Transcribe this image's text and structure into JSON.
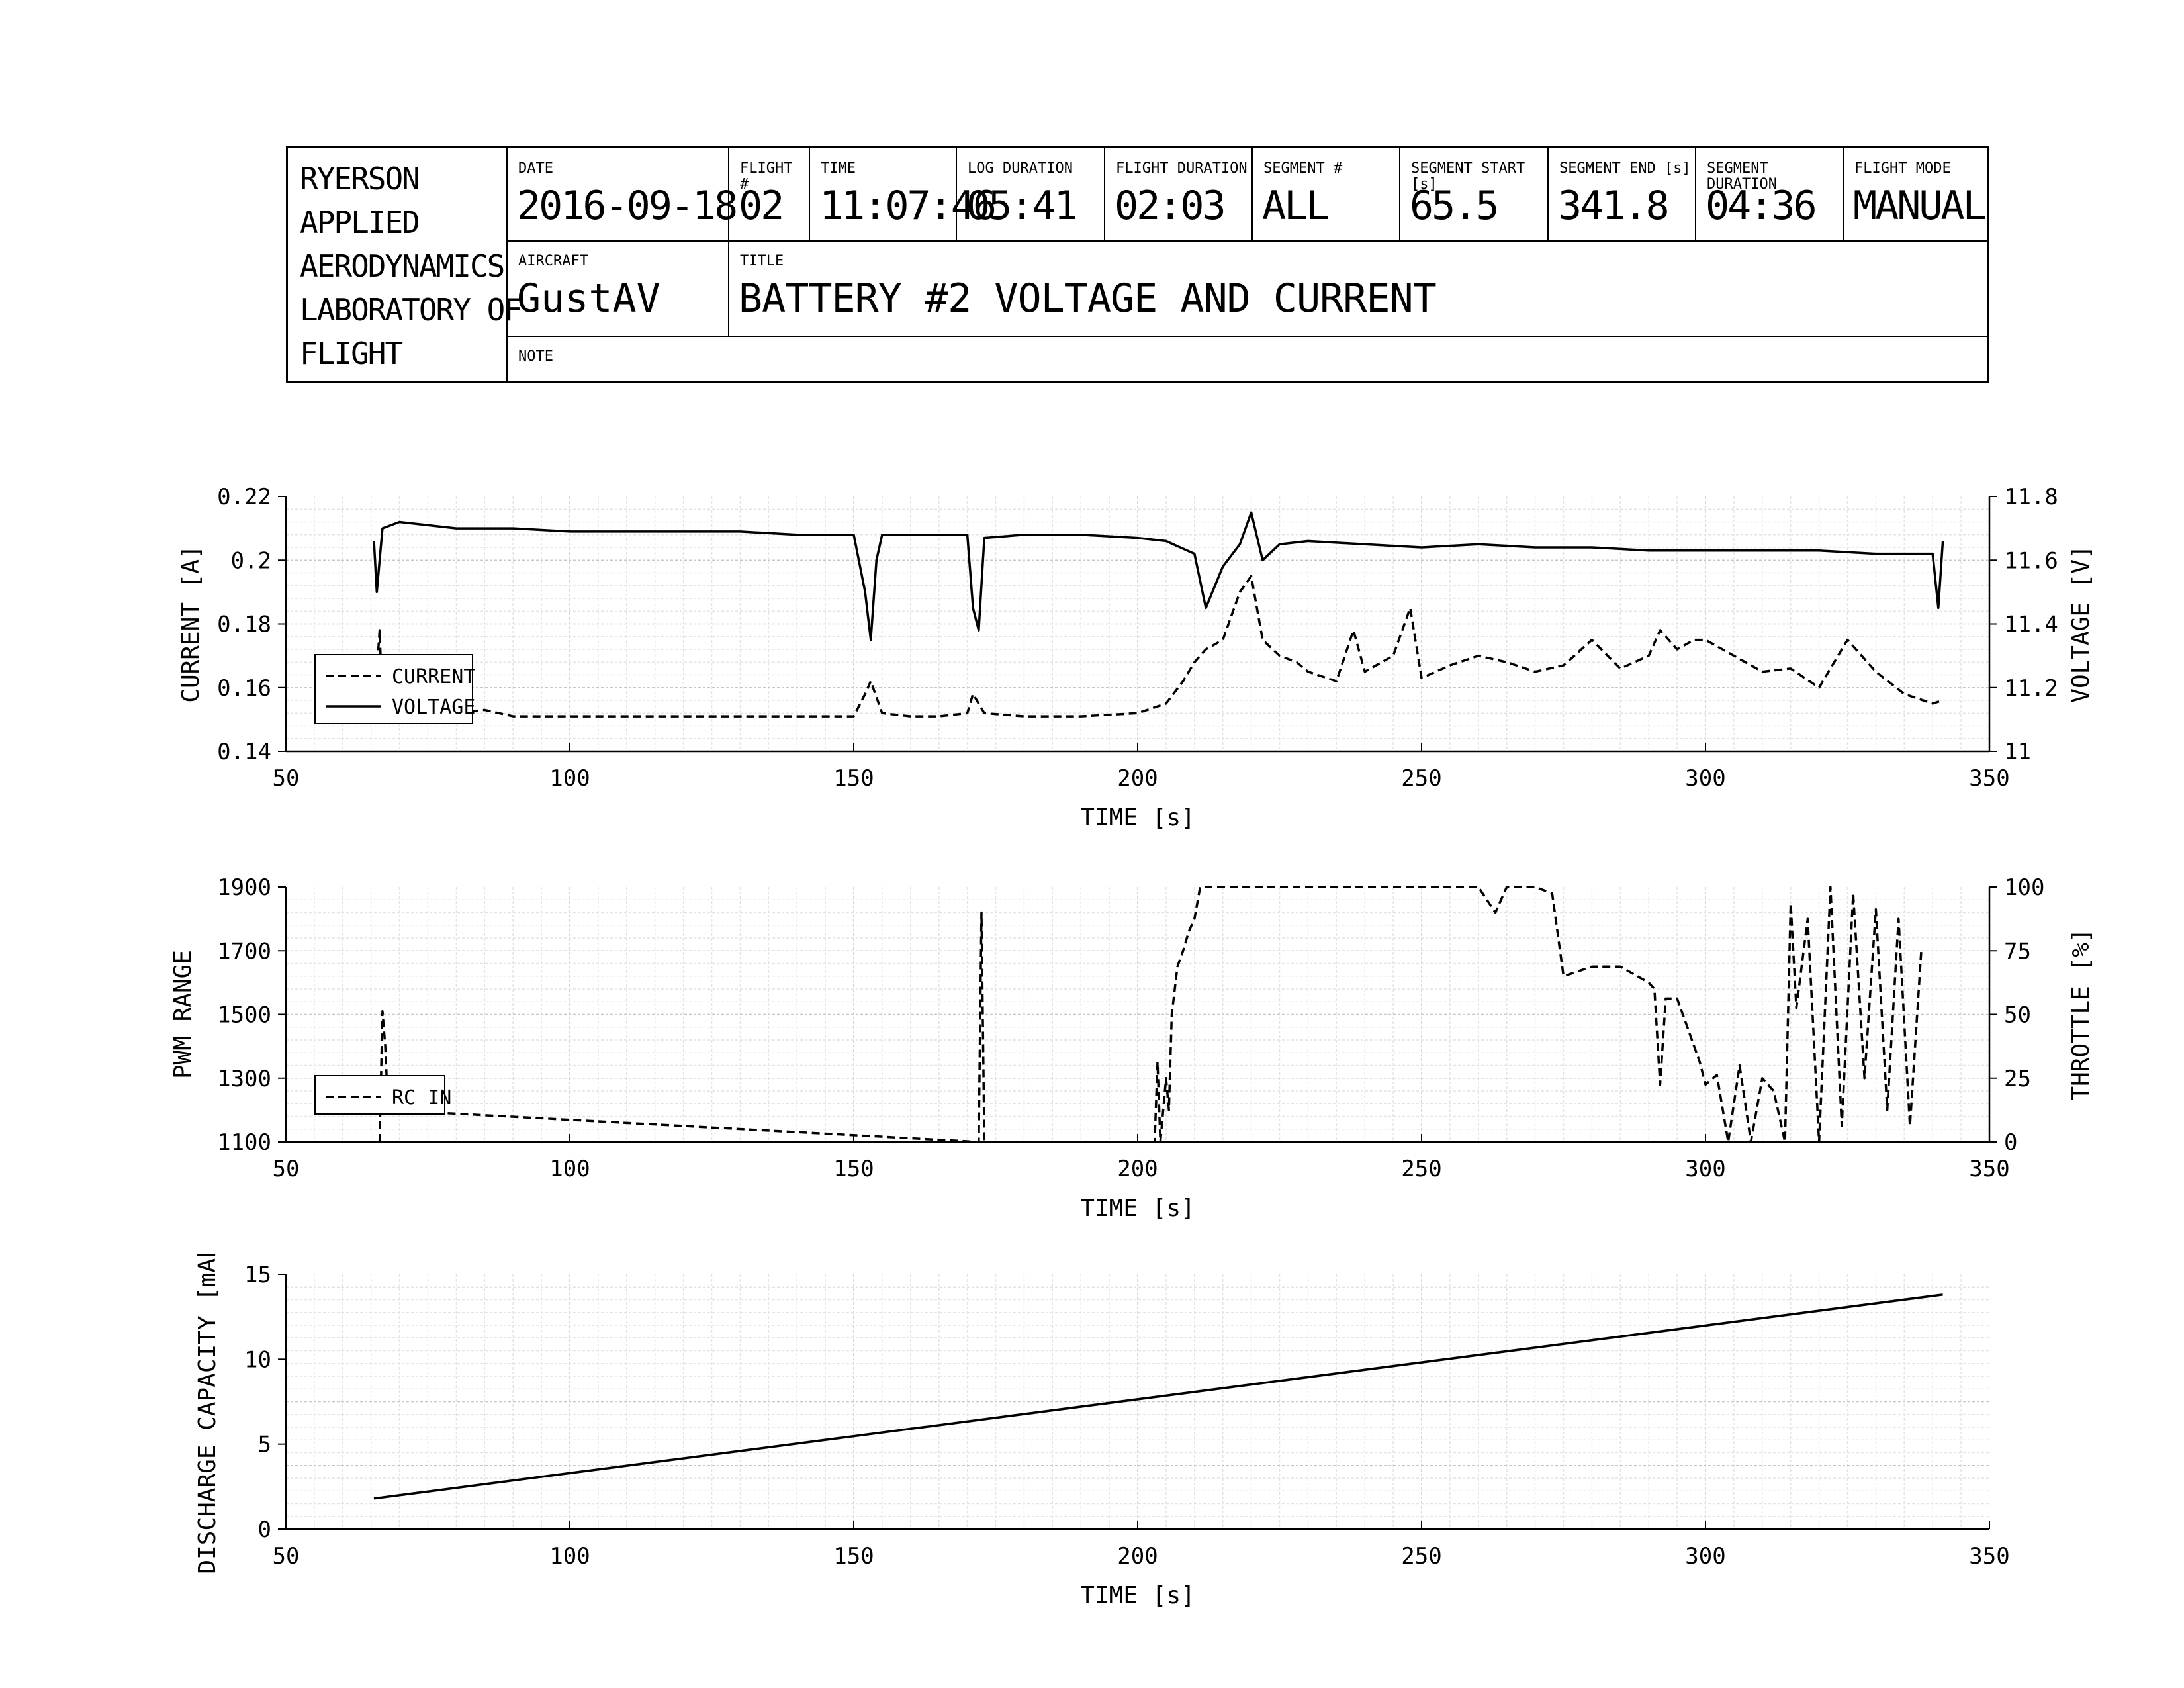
{
  "title_block": {
    "organization": [
      "RYERSON",
      "APPLIED",
      "AERODYNAMICS",
      "LABORATORY OF",
      "FLIGHT"
    ],
    "fields": [
      {
        "label": "DATE",
        "value": "2016-09-18"
      },
      {
        "label": "FLIGHT #",
        "value": "02"
      },
      {
        "label": "TIME",
        "value": "11:07:46"
      },
      {
        "label": "LOG DURATION",
        "value": "05:41"
      },
      {
        "label": "FLIGHT DURATION",
        "value": "02:03"
      },
      {
        "label": "SEGMENT #",
        "value": "ALL"
      },
      {
        "label": "SEGMENT START [s]",
        "value": "65.5"
      },
      {
        "label": "SEGMENT END [s]",
        "value": "341.8"
      },
      {
        "label": "SEGMENT DURATION",
        "value": "04:36"
      },
      {
        "label": "FLIGHT MODE",
        "value": "MANUAL"
      }
    ],
    "aircraft_label": "AIRCRAFT",
    "aircraft": "GustAV",
    "title_label": "TITLE",
    "title": "BATTERY #2 VOLTAGE AND CURRENT",
    "note_label": "NOTE",
    "note": ""
  },
  "chart_data": [
    {
      "type": "line",
      "xlabel": "TIME [s]",
      "ylabel": "CURRENT [A]",
      "y2label": "VOLTAGE [V]",
      "xlim": [
        50,
        350
      ],
      "ylim": [
        0.14,
        0.22
      ],
      "y2lim": [
        11.0,
        11.8
      ],
      "xticks": [
        "50",
        "100",
        "150",
        "200",
        "250",
        "300",
        "350"
      ],
      "yticks": [
        "0.14",
        "0.16",
        "0.18",
        "0.2",
        "0.22"
      ],
      "y2ticks": [
        "11",
        "11.2",
        "11.4",
        "11.6",
        "11.8"
      ],
      "grid": true,
      "legend_position": "bottom-left",
      "series": [
        {
          "name": "CURRENT",
          "axis": "left",
          "style": "dashed",
          "x": [
            65.5,
            66.5,
            67,
            70,
            75,
            80,
            85,
            90,
            100,
            110,
            120,
            130,
            140,
            150,
            152,
            153,
            155,
            160,
            165,
            170,
            171,
            173,
            180,
            190,
            200,
            205,
            208,
            210,
            212,
            215,
            218,
            220,
            222,
            225,
            228,
            230,
            235,
            238,
            240,
            245,
            248,
            250,
            255,
            260,
            265,
            270,
            275,
            280,
            285,
            290,
            292,
            295,
            298,
            300,
            305,
            310,
            315,
            320,
            325,
            330,
            335,
            340,
            341.8
          ],
          "values": [
            0.152,
            0.178,
            0.153,
            0.152,
            0.151,
            0.152,
            0.153,
            0.151,
            0.151,
            0.151,
            0.151,
            0.151,
            0.151,
            0.151,
            0.158,
            0.162,
            0.152,
            0.151,
            0.151,
            0.152,
            0.158,
            0.152,
            0.151,
            0.151,
            0.152,
            0.155,
            0.162,
            0.168,
            0.172,
            0.175,
            0.19,
            0.195,
            0.175,
            0.17,
            0.168,
            0.165,
            0.162,
            0.178,
            0.165,
            0.17,
            0.185,
            0.163,
            0.167,
            0.17,
            0.168,
            0.165,
            0.167,
            0.175,
            0.166,
            0.17,
            0.178,
            0.172,
            0.175,
            0.175,
            0.17,
            0.165,
            0.166,
            0.16,
            0.175,
            0.165,
            0.158,
            0.155,
            0.156
          ]
        },
        {
          "name": "VOLTAGE",
          "axis": "right",
          "style": "solid",
          "x": [
            65.5,
            66,
            67,
            70,
            80,
            90,
            100,
            110,
            120,
            130,
            140,
            150,
            152,
            153,
            154,
            155,
            160,
            165,
            170,
            171,
            172,
            173,
            180,
            190,
            200,
            205,
            210,
            212,
            215,
            218,
            220,
            222,
            225,
            230,
            240,
            250,
            260,
            270,
            280,
            290,
            300,
            310,
            320,
            330,
            340,
            341,
            341.8
          ],
          "values": [
            11.66,
            11.5,
            11.7,
            11.72,
            11.7,
            11.7,
            11.69,
            11.69,
            11.69,
            11.69,
            11.68,
            11.68,
            11.5,
            11.35,
            11.6,
            11.68,
            11.68,
            11.68,
            11.68,
            11.45,
            11.38,
            11.67,
            11.68,
            11.68,
            11.67,
            11.66,
            11.62,
            11.45,
            11.58,
            11.65,
            11.75,
            11.6,
            11.65,
            11.66,
            11.65,
            11.64,
            11.65,
            11.64,
            11.64,
            11.63,
            11.63,
            11.63,
            11.63,
            11.62,
            11.62,
            11.45,
            11.66
          ]
        }
      ]
    },
    {
      "type": "line",
      "xlabel": "TIME [s]",
      "ylabel": "PWM RANGE",
      "y2label": "THROTTLE [%]",
      "xlim": [
        50,
        350
      ],
      "ylim": [
        1100,
        1900
      ],
      "y2lim": [
        0,
        100
      ],
      "xticks": [
        "50",
        "100",
        "150",
        "200",
        "250",
        "300",
        "350"
      ],
      "yticks": [
        "1100",
        "1300",
        "1500",
        "1700",
        "1900"
      ],
      "y2ticks": [
        "0",
        "25",
        "50",
        "75",
        "100"
      ],
      "grid": true,
      "legend_position": "bottom-left",
      "series": [
        {
          "name": "RC IN",
          "axis": "left",
          "style": "dashed",
          "x": [
            66.5,
            67,
            67.5,
            68,
            172,
            172.5,
            173,
            203,
            203.5,
            204,
            205,
            205.5,
            206,
            207,
            208,
            209,
            210,
            211,
            220,
            230,
            240,
            250,
            260,
            263,
            265,
            268,
            270,
            273,
            275,
            280,
            285,
            290,
            291,
            292,
            293,
            295,
            297,
            299,
            300,
            302,
            304,
            306,
            308,
            310,
            312,
            314,
            315,
            316,
            318,
            320,
            322,
            324,
            326,
            328,
            330,
            332,
            334,
            336,
            338
          ],
          "values": [
            1100,
            1510,
            1400,
            1200,
            1100,
            1820,
            1100,
            1100,
            1350,
            1100,
            1300,
            1200,
            1500,
            1650,
            1700,
            1760,
            1800,
            1900,
            1900,
            1900,
            1900,
            1900,
            1900,
            1820,
            1900,
            1900,
            1900,
            1880,
            1620,
            1650,
            1650,
            1600,
            1580,
            1280,
            1550,
            1550,
            1450,
            1350,
            1280,
            1310,
            1100,
            1340,
            1100,
            1300,
            1260,
            1100,
            1850,
            1520,
            1800,
            1100,
            1900,
            1150,
            1880,
            1300,
            1830,
            1200,
            1800,
            1150,
            1700
          ]
        }
      ]
    },
    {
      "type": "line",
      "xlabel": "TIME [s]",
      "ylabel": "DISCHARGE CAPACITY [mAh]",
      "xlim": [
        50,
        350
      ],
      "ylim": [
        0,
        15
      ],
      "xticks": [
        "50",
        "100",
        "150",
        "200",
        "250",
        "300",
        "350"
      ],
      "yticks": [
        "0",
        "5",
        "10",
        "15"
      ],
      "grid": true,
      "series": [
        {
          "name": "",
          "axis": "left",
          "style": "solid",
          "x": [
            65.5,
            341.8
          ],
          "values": [
            1.8,
            13.8
          ]
        }
      ]
    }
  ]
}
